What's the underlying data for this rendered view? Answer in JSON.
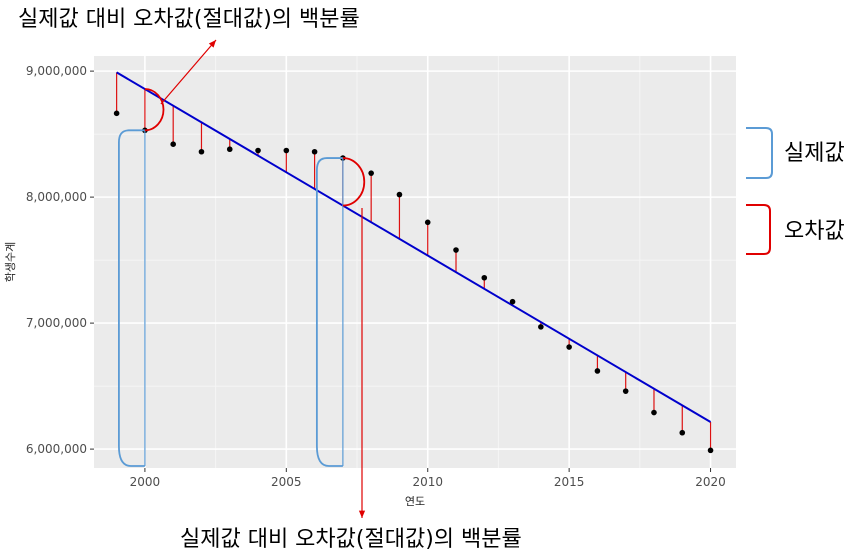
{
  "chart_data": {
    "type": "line",
    "xlabel": "연도",
    "ylabel": "학생수계",
    "xlim": [
      1998.2,
      2020.9
    ],
    "ylim": [
      5850000,
      9120000
    ],
    "x_ticks": [
      2000,
      2005,
      2010,
      2015,
      2020
    ],
    "x_tick_labels": [
      "2000",
      "2005",
      "2010",
      "2015",
      "2020"
    ],
    "y_ticks": [
      6000000,
      7000000,
      8000000,
      9000000
    ],
    "y_tick_labels": [
      "6,000,000",
      "7,000,000",
      "8,000,000",
      "9,000,000"
    ],
    "grid": true,
    "series": [
      {
        "kind": "points",
        "color": "#000000",
        "x": [
          1999,
          2000,
          2001,
          2002,
          2003,
          2004,
          2005,
          2006,
          2007,
          2008,
          2009,
          2010,
          2011,
          2012,
          2013,
          2014,
          2015,
          2016,
          2017,
          2018,
          2019,
          2020
        ],
        "y": [
          8665000,
          8530000,
          8420000,
          8360000,
          8380000,
          8370000,
          8370000,
          8360000,
          8310000,
          8190000,
          8020000,
          7800000,
          7580000,
          7360000,
          7170000,
          6970000,
          6810000,
          6620000,
          6460000,
          6290000,
          6130000,
          5990000
        ]
      },
      {
        "kind": "fitted-line",
        "color": "#0000cc",
        "x": [
          1999,
          2020
        ],
        "y": [
          8990000,
          6215000
        ]
      }
    ],
    "residual_color": "#dd1111",
    "annotations": {
      "top_text": "실제값 대비 오차값(절대값)의 백분률",
      "bottom_text": "실제값 대비 오차값(절대값)의 백분률",
      "legend_actual": "실제값",
      "legend_error": "오차값",
      "actual_color": "#5b9bd5",
      "error_color": "#e00000"
    }
  }
}
